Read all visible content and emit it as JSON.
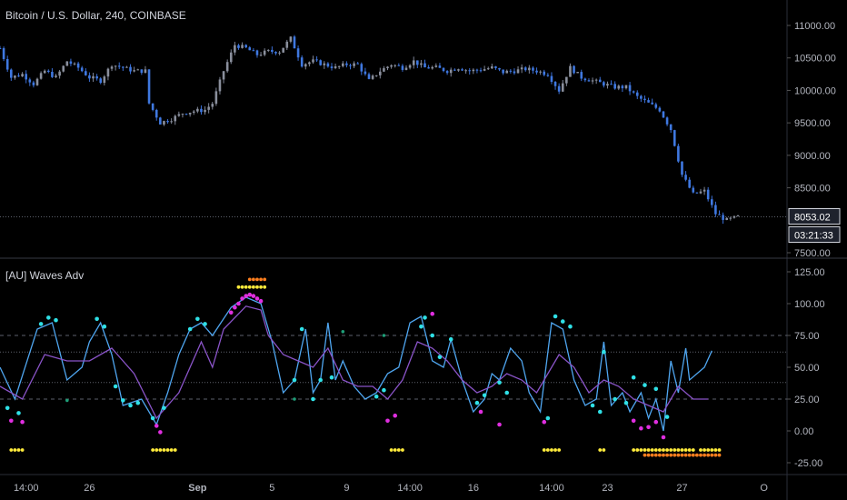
{
  "chart_data": [
    {
      "type": "candlestick",
      "title": "Bitcoin / U.S. Dollar, 240, COINBASE",
      "y_ticks": [
        "11000.00",
        "10500.00",
        "10000.00",
        "9500.00",
        "9000.00",
        "8500.00",
        "7500.00"
      ],
      "ylim": [
        7420,
        11250
      ],
      "last_price_label": "8053.02",
      "last_price": 8053.02,
      "countdown_label": "03:21:33",
      "close_path": [
        [
          0,
          10650
        ],
        [
          3,
          10200
        ],
        [
          6,
          10250
        ],
        [
          9,
          10100
        ],
        [
          12,
          10300
        ],
        [
          15,
          10200
        ],
        [
          18,
          10450
        ],
        [
          21,
          10350
        ],
        [
          24,
          10200
        ],
        [
          27,
          10150
        ],
        [
          30,
          10400
        ],
        [
          33,
          10350
        ],
        [
          36,
          10300
        ],
        [
          39,
          10300
        ],
        [
          40,
          9800
        ],
        [
          43,
          9500
        ],
        [
          46,
          9560
        ],
        [
          49,
          9650
        ],
        [
          52,
          9680
        ],
        [
          55,
          9700
        ],
        [
          57,
          9800
        ],
        [
          60,
          10300
        ],
        [
          63,
          10700
        ],
        [
          66,
          10650
        ],
        [
          69,
          10550
        ],
        [
          72,
          10600
        ],
        [
          75,
          10600
        ],
        [
          78,
          10800
        ],
        [
          81,
          10400
        ],
        [
          84,
          10450
        ],
        [
          87,
          10400
        ],
        [
          90,
          10350
        ],
        [
          93,
          10400
        ],
        [
          96,
          10400
        ],
        [
          99,
          10150
        ],
        [
          102,
          10300
        ],
        [
          105,
          10400
        ],
        [
          108,
          10350
        ],
        [
          111,
          10450
        ],
        [
          114,
          10350
        ],
        [
          117,
          10350
        ],
        [
          120,
          10300
        ],
        [
          123,
          10350
        ],
        [
          126,
          10300
        ],
        [
          129,
          10320
        ],
        [
          132,
          10350
        ],
        [
          135,
          10280
        ],
        [
          138,
          10300
        ],
        [
          141,
          10330
        ],
        [
          144,
          10300
        ],
        [
          147,
          10250
        ],
        [
          150,
          10000
        ],
        [
          153,
          10350
        ],
        [
          156,
          10200
        ],
        [
          159,
          10150
        ],
        [
          162,
          10100
        ],
        [
          165,
          10050
        ],
        [
          168,
          10050
        ],
        [
          171,
          9900
        ],
        [
          174,
          9800
        ],
        [
          177,
          9700
        ],
        [
          180,
          9400
        ],
        [
          183,
          8700
        ],
        [
          186,
          8400
        ],
        [
          189,
          8450
        ],
        [
          192,
          8100
        ],
        [
          195,
          8000
        ],
        [
          198,
          8053
        ]
      ]
    },
    {
      "type": "line",
      "title": "[AU] Waves Adv",
      "y_ticks": [
        "125.00",
        "100.00",
        "75.00",
        "50.00",
        "25.00",
        "0.00",
        "-25.00"
      ],
      "ylim": [
        -30,
        127
      ],
      "levels": [
        75,
        62,
        38,
        25
      ],
      "x_ticks": [
        "14:00",
        "26",
        "Sep",
        "5",
        "9",
        "14:00",
        "16",
        "14:00",
        "23",
        "27",
        "O"
      ],
      "series": [
        {
          "color": "#4fa6f0",
          "points": [
            [
              0,
              50
            ],
            [
              4,
              25
            ],
            [
              10,
              80
            ],
            [
              14,
              85
            ],
            [
              18,
              40
            ],
            [
              20,
              45
            ],
            [
              22,
              50
            ],
            [
              24,
              70
            ],
            [
              27,
              85
            ],
            [
              30,
              60
            ],
            [
              33,
              20
            ],
            [
              38,
              25
            ],
            [
              42,
              5
            ],
            [
              45,
              30
            ],
            [
              48,
              60
            ],
            [
              51,
              80
            ],
            [
              54,
              85
            ],
            [
              57,
              75
            ],
            [
              62,
              97
            ],
            [
              66,
              105
            ],
            [
              70,
              100
            ],
            [
              73,
              70
            ],
            [
              76,
              30
            ],
            [
              79,
              40
            ],
            [
              82,
              80
            ],
            [
              84,
              30
            ],
            [
              86,
              40
            ],
            [
              88,
              85
            ],
            [
              90,
              40
            ],
            [
              92,
              55
            ],
            [
              95,
              35
            ],
            [
              98,
              25
            ],
            [
              101,
              30
            ],
            [
              104,
              45
            ],
            [
              107,
              50
            ],
            [
              110,
              85
            ],
            [
              113,
              90
            ],
            [
              116,
              55
            ],
            [
              119,
              50
            ],
            [
              121,
              72
            ],
            [
              124,
              40
            ],
            [
              127,
              15
            ],
            [
              130,
              25
            ],
            [
              132,
              45
            ],
            [
              134,
              40
            ],
            [
              137,
              65
            ],
            [
              140,
              55
            ],
            [
              142,
              30
            ],
            [
              145,
              15
            ],
            [
              148,
              85
            ],
            [
              151,
              80
            ],
            [
              154,
              40
            ],
            [
              157,
              20
            ],
            [
              160,
              25
            ],
            [
              162,
              70
            ],
            [
              164,
              20
            ],
            [
              167,
              30
            ],
            [
              169,
              15
            ],
            [
              172,
              30
            ],
            [
              174,
              10
            ],
            [
              176,
              25
            ],
            [
              178,
              0
            ],
            [
              180,
              55
            ],
            [
              182,
              30
            ],
            [
              184,
              65
            ],
            [
              185,
              40
            ],
            [
              187,
              45
            ],
            [
              189,
              50
            ],
            [
              191,
              63
            ]
          ]
        },
        {
          "color": "#8a54c8",
          "points": [
            [
              0,
              35
            ],
            [
              6,
              25
            ],
            [
              12,
              60
            ],
            [
              18,
              55
            ],
            [
              24,
              55
            ],
            [
              30,
              65
            ],
            [
              36,
              45
            ],
            [
              42,
              10
            ],
            [
              48,
              30
            ],
            [
              54,
              70
            ],
            [
              57,
              50
            ],
            [
              60,
              80
            ],
            [
              66,
              98
            ],
            [
              70,
              95
            ],
            [
              72,
              75
            ],
            [
              76,
              60
            ],
            [
              80,
              55
            ],
            [
              84,
              50
            ],
            [
              88,
              65
            ],
            [
              92,
              40
            ],
            [
              96,
              35
            ],
            [
              100,
              35
            ],
            [
              104,
              25
            ],
            [
              108,
              40
            ],
            [
              112,
              70
            ],
            [
              116,
              65
            ],
            [
              120,
              55
            ],
            [
              124,
              40
            ],
            [
              128,
              30
            ],
            [
              132,
              35
            ],
            [
              136,
              45
            ],
            [
              140,
              40
            ],
            [
              144,
              30
            ],
            [
              150,
              60
            ],
            [
              154,
              50
            ],
            [
              158,
              30
            ],
            [
              162,
              40
            ],
            [
              166,
              35
            ],
            [
              170,
              25
            ],
            [
              174,
              20
            ],
            [
              178,
              15
            ],
            [
              182,
              35
            ],
            [
              186,
              25
            ],
            [
              190,
              25
            ]
          ]
        }
      ],
      "cyan_dots": [
        [
          2,
          18
        ],
        [
          5,
          14
        ],
        [
          11,
          84
        ],
        [
          13,
          89
        ],
        [
          15,
          87
        ],
        [
          26,
          88
        ],
        [
          28,
          82
        ],
        [
          31,
          35
        ],
        [
          33,
          24
        ],
        [
          35,
          20
        ],
        [
          37,
          22
        ],
        [
          41,
          10
        ],
        [
          44,
          18
        ],
        [
          51,
          80
        ],
        [
          53,
          88
        ],
        [
          55,
          84
        ],
        [
          79,
          40
        ],
        [
          81,
          80
        ],
        [
          84,
          25
        ],
        [
          86,
          40
        ],
        [
          89,
          42
        ],
        [
          101,
          27
        ],
        [
          103,
          32
        ],
        [
          113,
          82
        ],
        [
          114,
          89
        ],
        [
          116,
          75
        ],
        [
          118,
          58
        ],
        [
          121,
          72
        ],
        [
          128,
          22
        ],
        [
          130,
          28
        ],
        [
          134,
          38
        ],
        [
          136,
          30
        ],
        [
          147,
          10
        ],
        [
          149,
          90
        ],
        [
          151,
          86
        ],
        [
          153,
          82
        ],
        [
          159,
          20
        ],
        [
          161,
          15
        ],
        [
          162,
          62
        ],
        [
          165,
          25
        ],
        [
          168,
          22
        ],
        [
          170,
          42
        ],
        [
          173,
          36
        ],
        [
          176,
          33
        ],
        [
          179,
          11
        ]
      ],
      "magenta_dots": [
        [
          3,
          8
        ],
        [
          6,
          7
        ],
        [
          42,
          4
        ],
        [
          43,
          -1
        ],
        [
          62,
          93
        ],
        [
          63,
          97
        ],
        [
          64,
          100
        ],
        [
          65,
          104
        ],
        [
          66,
          106
        ],
        [
          67,
          107
        ],
        [
          68,
          106
        ],
        [
          69,
          104
        ],
        [
          70,
          102
        ],
        [
          104,
          8
        ],
        [
          106,
          12
        ],
        [
          116,
          92
        ],
        [
          129,
          15
        ],
        [
          134,
          5
        ],
        [
          146,
          7
        ],
        [
          170,
          8
        ],
        [
          172,
          2
        ],
        [
          174,
          3
        ],
        [
          176,
          7
        ],
        [
          178,
          -5
        ]
      ],
      "green_dots": [
        [
          18,
          24
        ],
        [
          79,
          25
        ],
        [
          92,
          78
        ],
        [
          103,
          75
        ]
      ],
      "yellow_marker_runs": [
        [
          [
            3,
            6
          ],
          -15
        ],
        [
          [
            41,
            47
          ],
          -15
        ],
        [
          [
            64,
            71
          ],
          113
        ],
        [
          [
            105,
            108
          ],
          -15
        ],
        [
          [
            146,
            150
          ],
          -15
        ],
        [
          [
            161,
            162
          ],
          -15
        ],
        [
          [
            170,
            186
          ],
          -15
        ],
        [
          [
            188,
            193
          ],
          -15
        ]
      ],
      "orange_marker_runs": [
        [
          [
            67,
            71
          ],
          119
        ],
        [
          [
            173,
            193
          ],
          -19
        ]
      ]
    }
  ]
}
